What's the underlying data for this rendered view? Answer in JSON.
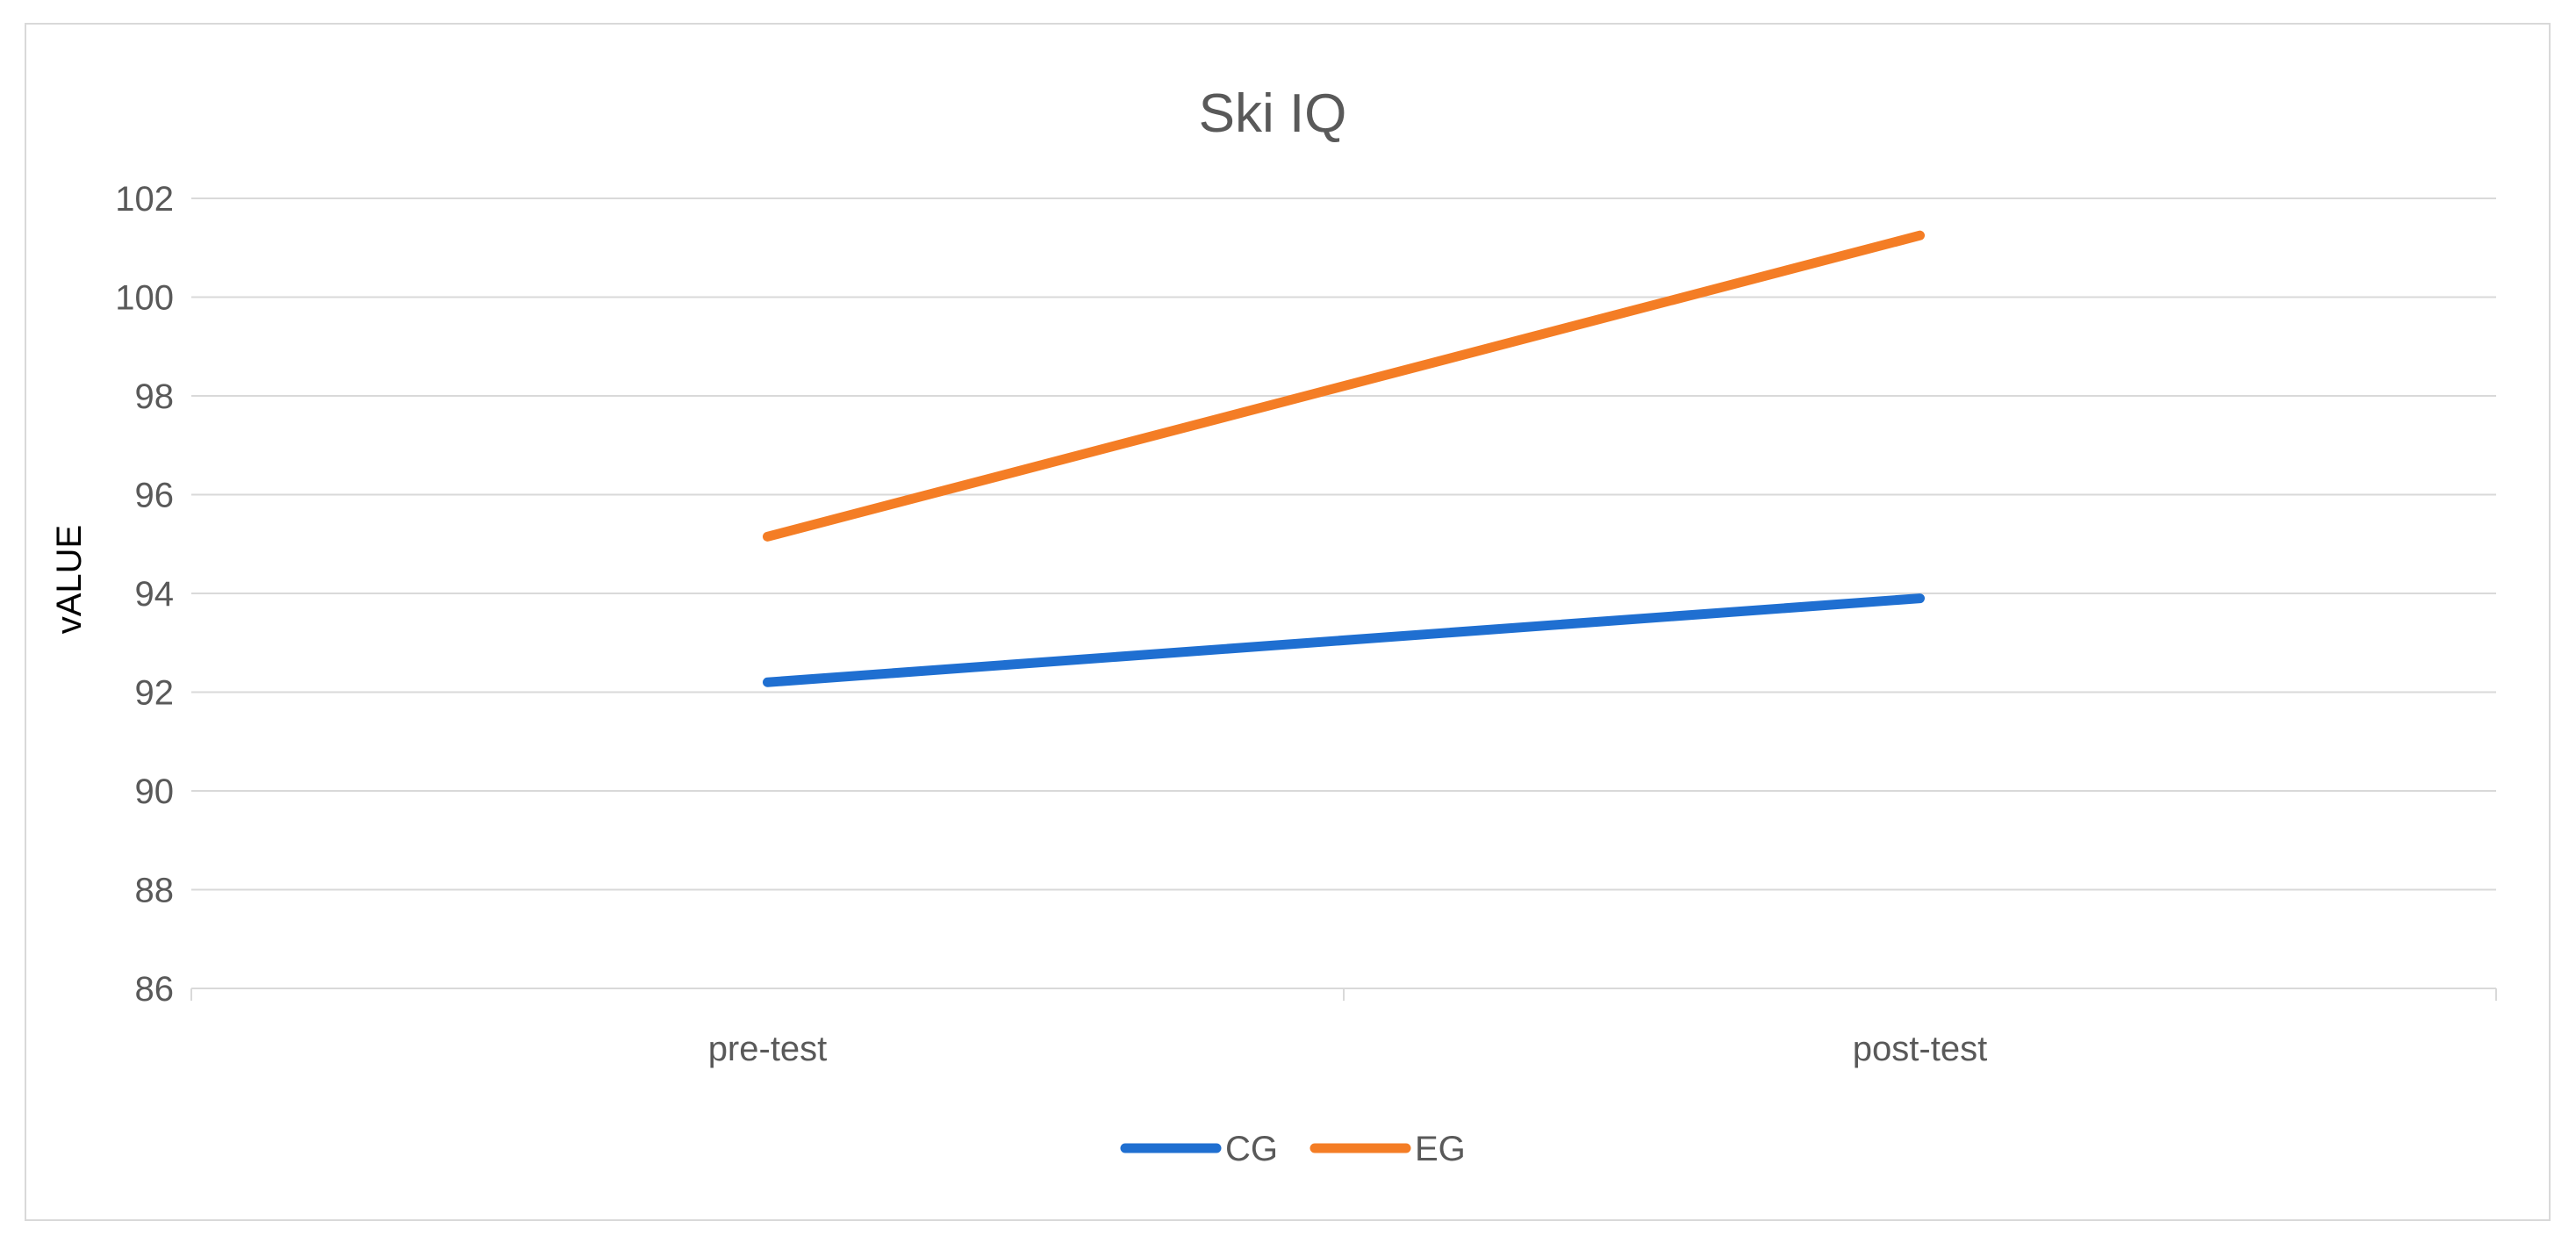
{
  "chart_data": {
    "type": "line",
    "title": "Ski IQ",
    "xlabel": "",
    "ylabel": "vALUE",
    "categories": [
      "pre-test",
      "post-test"
    ],
    "series": [
      {
        "name": "CG",
        "color": "#1f6fd1",
        "values": [
          92.2,
          93.9
        ]
      },
      {
        "name": "EG",
        "color": "#f47d25",
        "values": [
          95.15,
          101.25
        ]
      }
    ],
    "ylim": [
      86,
      102
    ],
    "yticks": [
      "86",
      "88",
      "90",
      "92",
      "94",
      "96",
      "98",
      "100",
      "102"
    ],
    "grid": true,
    "legend": "bottom"
  }
}
